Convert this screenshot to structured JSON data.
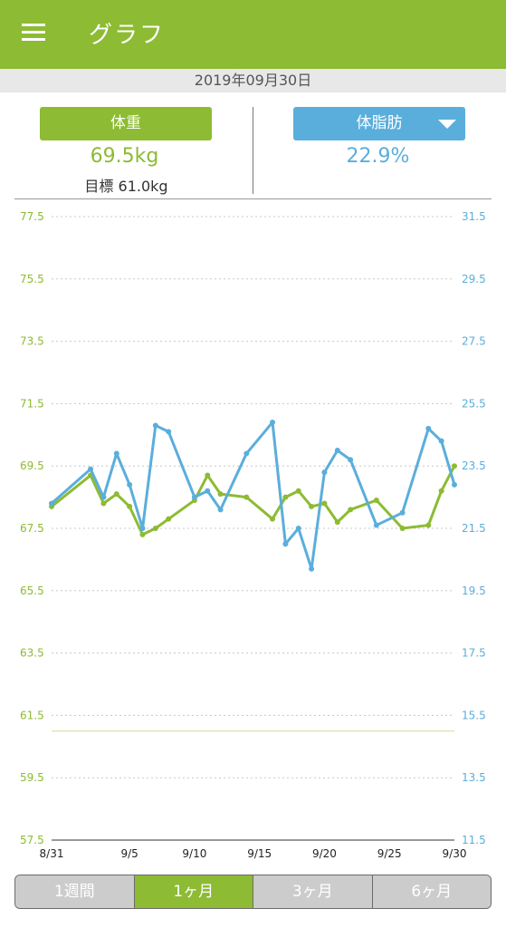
{
  "app_bar": {
    "title": "グラフ",
    "menu_icon": "hamburger-menu-icon",
    "color": "#8dbb33"
  },
  "date": "2019年09月30日",
  "weight_panel": {
    "label": "体重",
    "value": "69.5kg",
    "goal": "目標 61.0kg",
    "color": "#8dbb33"
  },
  "fat_panel": {
    "label": "体脂肪",
    "value": "22.9%",
    "dropdown_icon": "dropdown-triangle-icon",
    "color": "#5aaedc"
  },
  "chart_data": {
    "type": "line",
    "x_labels": [
      "8/31",
      "9/5",
      "9/10",
      "9/15",
      "9/20",
      "9/25",
      "9/30"
    ],
    "left_axis": {
      "ticks": [
        "77.5",
        "75.5",
        "73.5",
        "71.5",
        "69.5",
        "67.5",
        "65.5",
        "63.5",
        "61.5",
        "59.5",
        "57.5"
      ],
      "range": [
        57.5,
        77.5
      ],
      "color": "#8dbb33"
    },
    "right_axis": {
      "ticks": [
        "31.5",
        "29.5",
        "27.5",
        "25.5",
        "23.5",
        "21.5",
        "19.5",
        "17.5",
        "15.5",
        "13.5",
        "11.5"
      ],
      "range": [
        11.5,
        31.5
      ],
      "color": "#5aaedc"
    },
    "goal_line": 61.0,
    "series": [
      {
        "axis": "left",
        "color": "#8dbb33",
        "points": [
          [
            0,
            68.2
          ],
          [
            3,
            69.2
          ],
          [
            4,
            68.3
          ],
          [
            5,
            68.6
          ],
          [
            6,
            68.2
          ],
          [
            7,
            67.3
          ],
          [
            8,
            67.5
          ],
          [
            9,
            67.8
          ],
          [
            11,
            68.4
          ],
          [
            12,
            69.2
          ],
          [
            13,
            68.6
          ],
          [
            15,
            68.5
          ],
          [
            17,
            67.8
          ],
          [
            18,
            68.5
          ],
          [
            19,
            68.7
          ],
          [
            20,
            68.2
          ],
          [
            21,
            68.3
          ],
          [
            22,
            67.7
          ],
          [
            23,
            68.1
          ],
          [
            25,
            68.4
          ],
          [
            27,
            67.5
          ],
          [
            29,
            67.6
          ],
          [
            30,
            68.7
          ],
          [
            31,
            69.5
          ]
        ]
      },
      {
        "axis": "right",
        "color": "#5aaedc",
        "points": [
          [
            0,
            22.3
          ],
          [
            3,
            23.4
          ],
          [
            4,
            22.5
          ],
          [
            5,
            23.9
          ],
          [
            6,
            22.9
          ],
          [
            7,
            21.5
          ],
          [
            8,
            24.8
          ],
          [
            9,
            24.6
          ],
          [
            11,
            22.5
          ],
          [
            12,
            22.7
          ],
          [
            13,
            22.1
          ],
          [
            15,
            23.9
          ],
          [
            17,
            24.9
          ],
          [
            18,
            21.0
          ],
          [
            19,
            21.5
          ],
          [
            20,
            20.2
          ],
          [
            21,
            23.3
          ],
          [
            22,
            24.0
          ],
          [
            23,
            23.7
          ],
          [
            25,
            21.6
          ],
          [
            27,
            22.0
          ],
          [
            29,
            24.7
          ],
          [
            30,
            24.3
          ],
          [
            31,
            22.9
          ]
        ]
      }
    ]
  },
  "period_tabs": [
    {
      "label": "1週間",
      "active": false
    },
    {
      "label": "1ヶ月",
      "active": true
    },
    {
      "label": "3ヶ月",
      "active": false
    },
    {
      "label": "6ヶ月",
      "active": false
    }
  ]
}
